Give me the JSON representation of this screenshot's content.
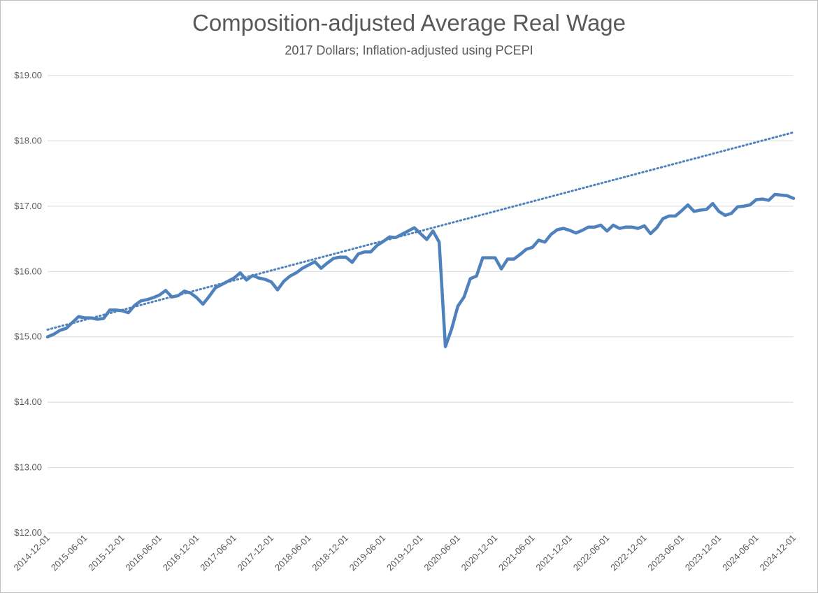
{
  "chart_data": {
    "type": "line",
    "title": "Composition-adjusted Average Real Wage",
    "subtitle": "2017 Dollars; Inflation-adjusted using PCEPI",
    "ylim": [
      12,
      19
    ],
    "y_ticks": [
      "$12.00",
      "$13.00",
      "$14.00",
      "$15.00",
      "$16.00",
      "$17.00",
      "$18.00",
      "$19.00"
    ],
    "x_ticks": [
      "2014-12-01",
      "2015-06-01",
      "2015-12-01",
      "2016-06-01",
      "2016-12-01",
      "2017-06-01",
      "2017-12-01",
      "2018-06-01",
      "2018-12-01",
      "2019-06-01",
      "2019-12-01",
      "2020-06-01",
      "2020-12-01",
      "2021-06-01",
      "2021-12-01",
      "2022-06-01",
      "2022-12-01",
      "2023-06-01",
      "2023-12-01",
      "2024-06-01",
      "2024-12-01"
    ],
    "grid": true,
    "legend": "none",
    "colors": {
      "series": "#4f81bd",
      "grid": "#d9d9d9"
    },
    "series": [
      {
        "style": "solid",
        "start": "2014-12-01",
        "values": [
          15.0,
          15.04,
          15.1,
          15.13,
          15.22,
          15.31,
          15.29,
          15.29,
          15.27,
          15.28,
          15.41,
          15.41,
          15.4,
          15.37,
          15.48,
          15.55,
          15.57,
          15.6,
          15.64,
          15.71,
          15.61,
          15.63,
          15.7,
          15.67,
          15.6,
          15.5,
          15.62,
          15.75,
          15.8,
          15.85,
          15.9,
          15.98,
          15.87,
          15.94,
          15.9,
          15.88,
          15.84,
          15.72,
          15.85,
          15.93,
          15.98,
          16.05,
          16.1,
          16.15,
          16.05,
          16.13,
          16.2,
          16.22,
          16.22,
          16.14,
          16.27,
          16.3,
          16.3,
          16.4,
          16.46,
          16.53,
          16.52,
          16.57,
          16.62,
          16.67,
          16.58,
          16.49,
          16.62,
          16.45,
          14.85,
          15.12,
          15.47,
          15.61,
          15.89,
          15.93,
          16.21,
          16.21,
          16.21,
          16.04,
          16.19,
          16.19,
          16.26,
          16.34,
          16.37,
          16.48,
          16.45,
          16.57,
          16.64,
          16.66,
          16.63,
          16.59,
          16.63,
          16.68,
          16.68,
          16.71,
          16.62,
          16.71,
          16.66,
          16.68,
          16.68,
          16.66,
          16.7,
          16.58,
          16.67,
          16.81,
          16.85,
          16.85,
          16.93,
          17.02,
          16.92,
          16.94,
          16.95,
          17.04,
          16.92,
          16.86,
          16.89,
          16.99,
          17.0,
          17.02,
          17.1,
          17.11,
          17.09,
          17.18,
          17.17,
          17.16,
          17.12
        ]
      },
      {
        "style": "dotted",
        "kind": "trend",
        "start": "2014-12-01",
        "end": "2024-12-01",
        "from": 15.11,
        "to": 18.13
      }
    ]
  }
}
